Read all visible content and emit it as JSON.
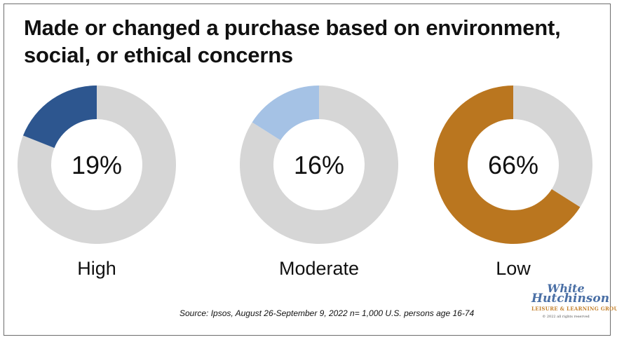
{
  "title_lines": [
    "Made or changed a purchase based on environment,",
    "social, or ethical concerns"
  ],
  "chart_data": {
    "type": "pie",
    "subtype": "donut",
    "title": "Made or changed a purchase based on environment, social, or ethical concerns",
    "categories": [
      "High",
      "Moderate",
      "Low"
    ],
    "values": [
      19,
      16,
      66
    ],
    "value_labels": [
      "19%",
      "16%",
      "66%"
    ],
    "colors": [
      "#2d568f",
      "#a5c2e5",
      "#ba761f"
    ],
    "remainder_color": "#d6d6d6",
    "units": "%"
  },
  "source": "Source: Ipsos, August 26-September 9, 2022 n= 1,000 U.S. persons age 16-74",
  "logo": {
    "line1": "White",
    "line2": "Hutchinson",
    "line3": "LEISURE & LEARNING GROUP",
    "line4": "© 2022 all rights reserved"
  }
}
